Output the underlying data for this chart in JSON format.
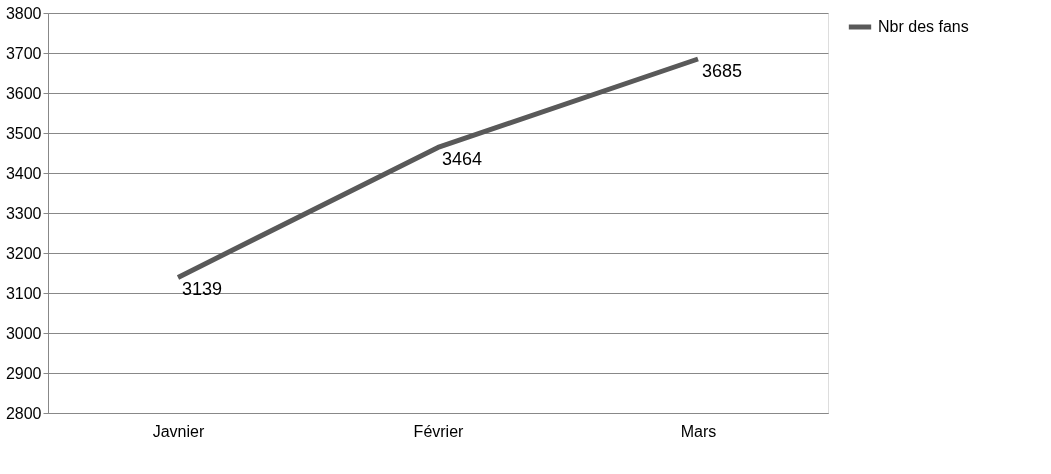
{
  "chart_data": {
    "type": "line",
    "categories": [
      "Javnier",
      "Février",
      "Mars"
    ],
    "series": [
      {
        "name": "Nbr des fans",
        "color": "#595959",
        "values": [
          3139,
          3464,
          3685
        ]
      }
    ],
    "ylim": [
      2800,
      3800
    ],
    "yticks": [
      2800,
      2900,
      3000,
      3100,
      3200,
      3300,
      3400,
      3500,
      3600,
      3700,
      3800
    ],
    "grid": "y",
    "legend": "right",
    "data_labels": true,
    "marker": "none",
    "line_style": "solid"
  }
}
